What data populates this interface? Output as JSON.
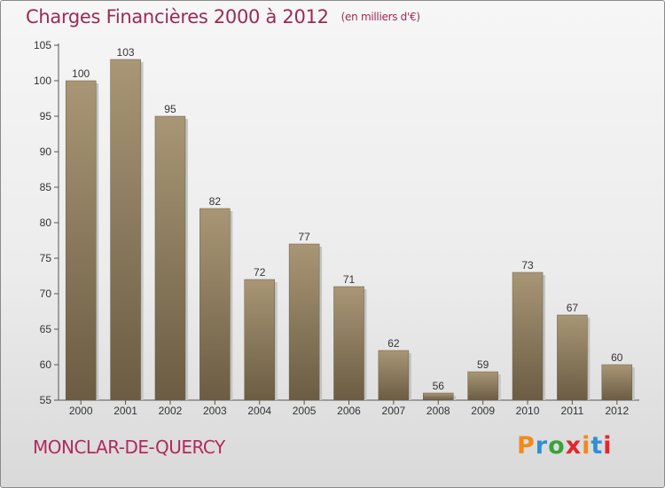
{
  "title": "Charges Financières 2000 à 2012",
  "unit": "(en milliers d'€)",
  "commune": "MONCLAR-DE-QUERCY",
  "brand": {
    "text": "Proxiti",
    "letter_colors": [
      "#f08a1c",
      "#2f8fd6",
      "#3aa23a",
      "#e2262b",
      "#f08a1c",
      "#2f8fd6",
      "#e2262b"
    ]
  },
  "colors": {
    "bar": "#8b7b60",
    "bar_light": "#a89675",
    "bar_dark": "#6b5c43",
    "shadow": "#c4c4c4",
    "title": "#9b2a56"
  },
  "chart_data": {
    "type": "bar",
    "categories": [
      "2000",
      "2001",
      "2002",
      "2003",
      "2004",
      "2005",
      "2006",
      "2007",
      "2008",
      "2009",
      "2010",
      "2011",
      "2012"
    ],
    "values": [
      100,
      103,
      95,
      82,
      72,
      77,
      71,
      62,
      56,
      59,
      73,
      67,
      60
    ],
    "ylim": [
      55,
      105
    ],
    "yticks": [
      55,
      60,
      65,
      70,
      75,
      80,
      85,
      90,
      95,
      100,
      105
    ],
    "grid": false,
    "data_labels": true,
    "title": "Charges Financières 2000 à 2012",
    "xlabel": "",
    "ylabel": ""
  }
}
